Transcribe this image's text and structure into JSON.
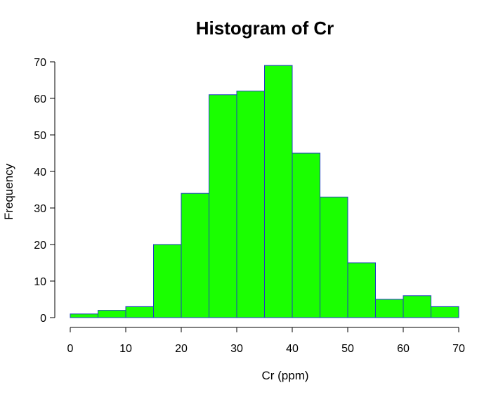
{
  "chart_data": {
    "type": "bar",
    "title": "Histogram of Cr",
    "xlabel": "Cr (ppm)",
    "ylabel": "Frequency",
    "bin_edges": [
      0,
      5,
      10,
      15,
      20,
      25,
      30,
      35,
      40,
      45,
      50,
      55,
      60,
      65,
      70
    ],
    "values": [
      1,
      2,
      3,
      20,
      34,
      61,
      62,
      69,
      45,
      33,
      15,
      5,
      6,
      3
    ],
    "xlim": [
      0,
      70
    ],
    "ylim": [
      0,
      70
    ],
    "x_ticks": [
      0,
      10,
      20,
      30,
      40,
      50,
      60,
      70
    ],
    "y_ticks": [
      0,
      10,
      20,
      30,
      40,
      50,
      60,
      70
    ],
    "grid": false,
    "legend": "none",
    "colors": {
      "bar_fill": "#1aff00",
      "bar_stroke": "#1f3fbf"
    }
  }
}
